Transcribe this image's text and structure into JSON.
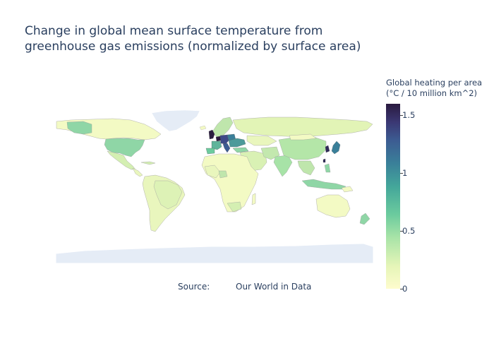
{
  "title_lines": [
    "Change in global mean surface temperature from",
    "greenhouse gas emissions (normalized by surface area)"
  ],
  "colorbar": {
    "title_lines": [
      "Global heating per area",
      "(°C / 10 million km^2)"
    ],
    "min": 0,
    "max": 1.6,
    "ticks": [
      {
        "value": 1.5,
        "label": "1.5"
      },
      {
        "value": 1,
        "label": "1"
      },
      {
        "value": 0.5,
        "label": "0.5"
      },
      {
        "value": 0,
        "label": "0"
      }
    ],
    "colorscale": [
      "#fefccd",
      "#e6f5b8",
      "#a7e3a7",
      "#6ccb9e",
      "#44a79a",
      "#3a7f99",
      "#3c5c92",
      "#3b3874",
      "#2a1a3f"
    ]
  },
  "source": {
    "label": "Source:",
    "value": "Our World in Data"
  },
  "map_data": {
    "type": "choropleth",
    "projection": "equirectangular",
    "highlighted_regions": [
      {
        "name": "United Kingdom",
        "value": 1.5
      },
      {
        "name": "Netherlands",
        "value": 1.6
      },
      {
        "name": "Belgium",
        "value": 1.6
      },
      {
        "name": "Germany",
        "value": 1.2
      },
      {
        "name": "Czechia",
        "value": 1.0
      },
      {
        "name": "Italy",
        "value": 0.7
      },
      {
        "name": "Japan",
        "value": 0.8
      },
      {
        "name": "South Korea",
        "value": 1.3
      },
      {
        "name": "Taiwan",
        "value": 1.3
      },
      {
        "name": "United States",
        "value": 0.45
      },
      {
        "name": "Poland",
        "value": 0.7
      },
      {
        "name": "Ukraine",
        "value": 0.5
      },
      {
        "name": "China",
        "value": 0.35
      },
      {
        "name": "India",
        "value": 0.35
      },
      {
        "name": "Indonesia",
        "value": 0.3
      },
      {
        "name": "Malaysia",
        "value": 0.3
      },
      {
        "name": "France",
        "value": 0.4
      },
      {
        "name": "Spain",
        "value": 0.35
      }
    ]
  }
}
